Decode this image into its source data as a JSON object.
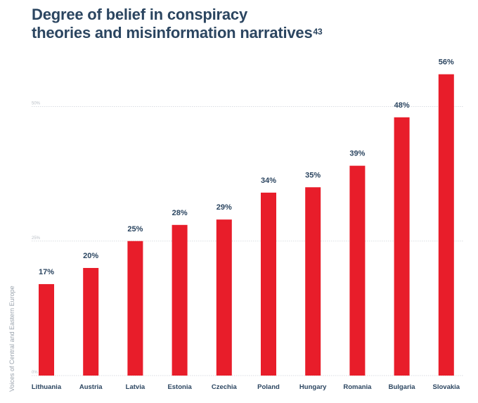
{
  "title": {
    "text": "Degree of belief in conspiracy theories and misinformation narratives",
    "line1": "Degree of belief in conspiracy",
    "line2": "theories and misinformation narratives",
    "footnote": "43"
  },
  "side_note": "Voices of Central and Eastern Europe",
  "colors": {
    "bar": "#e81d2a",
    "text": "#2b4560",
    "grid": "#d9dde2"
  },
  "chart_data": {
    "type": "bar",
    "title": "Degree of belief in conspiracy theories and misinformation narratives",
    "xlabel": "",
    "ylabel": "",
    "categories": [
      "Lithuania",
      "Austria",
      "Latvia",
      "Estonia",
      "Czechia",
      "Poland",
      "Hungary",
      "Romania",
      "Bulgaria",
      "Slovakia"
    ],
    "values": [
      17,
      20,
      25,
      28,
      29,
      34,
      35,
      39,
      48,
      56
    ],
    "value_labels": [
      "17%",
      "20%",
      "25%",
      "28%",
      "29%",
      "34%",
      "35%",
      "39%",
      "48%",
      "56%"
    ],
    "unit": "%",
    "ylim": [
      0,
      60
    ],
    "gridlines": [
      0,
      25,
      50
    ],
    "gridline_labels": [
      "0%",
      "25%",
      "50%"
    ],
    "grid": true,
    "legend": "none"
  }
}
